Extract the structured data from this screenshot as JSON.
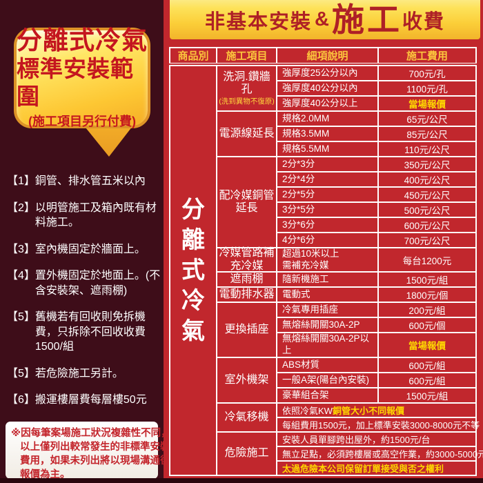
{
  "colors": {
    "panel_red": "#c1272d",
    "maroon": "#3e0d19",
    "banner_yellow": "#fbce38",
    "highlight_yellow": "#ffd800",
    "text_red": "#c4161f"
  },
  "bubble": {
    "line1": "分離式冷氣",
    "line2": "標準安裝範圍",
    "line3": "(施工項目另行付費)"
  },
  "left_list": {
    "items": [
      {
        "num": "【1】",
        "text": "銅管、排水管五米以內"
      },
      {
        "num": "【2】",
        "text": "以明管施工及箱內既有材料施工。"
      },
      {
        "num": "【3】",
        "text": "室內機固定於牆面上。"
      },
      {
        "num": "【4】",
        "text": "置外機固定於地面上。(不含安裝架、遮雨棚)"
      },
      {
        "num": "【5】",
        "text": "舊機若有回收則免拆機費，只拆除不回收收費1500/組"
      },
      {
        "num": "【5】",
        "text": "若危險施工另計。"
      },
      {
        "num": "【6】",
        "text": "搬運樓層費每層樓50元"
      }
    ]
  },
  "footnote": {
    "lines": [
      "※因每筆案場施工狀況複雜性不同，",
      "以上僅列出較常發生的非標準安裝",
      "費用，如果未列出將以現場溝通後",
      "報價為主。"
    ]
  },
  "banner": {
    "part1": "非基本安裝",
    "amp": "&",
    "part2": "施工",
    "part3": "收費"
  },
  "table": {
    "headers": [
      "商品別",
      "施工項目",
      "細項說明",
      "施工費用"
    ],
    "product": "分離式冷氣",
    "sections": [
      {
        "label": "洗洞.鑽牆孔",
        "note": "(洗到異物不復原)",
        "rows": [
          {
            "desc": "強厚度25公分以內",
            "price": "700元/孔"
          },
          {
            "desc": "強厚度40公分以內",
            "price": "1100元/孔"
          },
          {
            "desc": "強厚度40公分以上",
            "price": "當場報價",
            "price_highlight": true
          }
        ]
      },
      {
        "label": "電源線延長",
        "rows": [
          {
            "desc": "規格2.0MM",
            "price": "65元/公尺"
          },
          {
            "desc": "規格3.5MM",
            "price": "85元/公尺"
          },
          {
            "desc": "規格5.5MM",
            "price": "110元/公尺"
          }
        ]
      },
      {
        "label": "配冷媒銅管延長",
        "rows": [
          {
            "desc": "2分*3分",
            "price": "350元/公尺"
          },
          {
            "desc": "2分*4分",
            "price": "400元/公尺"
          },
          {
            "desc": "2分*5分",
            "price": "450元/公尺"
          },
          {
            "desc": "3分*5分",
            "price": "500元/公尺"
          },
          {
            "desc": "3分*6分",
            "price": "600元/公尺"
          },
          {
            "desc": "4分*6分",
            "price": "700元/公尺"
          }
        ]
      },
      {
        "label": "冷媒管路補充冷媒",
        "rows": [
          {
            "desc": "超過10米以上\n需補充冷媒",
            "price": "每台1200元",
            "span": 2
          }
        ]
      },
      {
        "label": "遮雨棚",
        "rows": [
          {
            "desc": "隨新機施工",
            "price": "1500元/組"
          }
        ]
      },
      {
        "label": "電動排水器",
        "rows": [
          {
            "desc": "電動式",
            "price": "1800元/個"
          }
        ]
      },
      {
        "label": "更換插座",
        "rows": [
          {
            "desc": "冷氣專用插座",
            "price": "200元/組"
          },
          {
            "desc": "無熔絲開關30A-2P",
            "price": "600元/個"
          },
          {
            "desc": "無熔絲開關30A-2P以上",
            "price": "當場報價",
            "price_highlight": true
          }
        ]
      },
      {
        "label": "室外機架",
        "rows": [
          {
            "desc": "ABS材質",
            "price": "600元/組"
          },
          {
            "desc": "一般A架(陽台內安裝)",
            "price": "600元/組"
          },
          {
            "desc": "豪華組合架",
            "price": "1500元/組"
          }
        ]
      },
      {
        "label": "冷氣移機",
        "rows": [
          {
            "merged": [
              {
                "text": "依照冷氣KW",
                "highlight": false
              },
              {
                "text": "銅管大小不同報價",
                "highlight": true
              }
            ]
          },
          {
            "merged": [
              {
                "text": "每組費用1500元，加上標準安裝3000-8000元不等",
                "highlight": false
              }
            ]
          }
        ]
      },
      {
        "label": "危險施工",
        "rows": [
          {
            "merged": [
              {
                "text": "安裝人員單腳跨出屋外，約1500元/台",
                "highlight": false
              }
            ]
          },
          {
            "merged": [
              {
                "text": "無立足點，必須跨樓層或高空作業，約3000-5000元/台",
                "highlight": false
              }
            ]
          },
          {
            "merged": [
              {
                "text": "太過危險本公司保留訂單接受與否之權利",
                "highlight": true
              }
            ]
          }
        ]
      }
    ]
  }
}
